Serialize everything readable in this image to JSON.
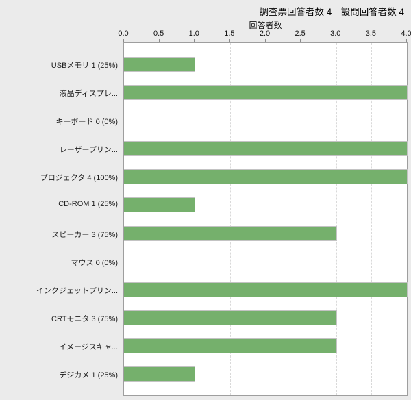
{
  "title": "調査票回答者数 4　設問回答者数 4",
  "colors": {
    "page_bg": "#ebebeb",
    "plot_bg": "#ffffff",
    "plot_border": "#9e9e9e",
    "gridline": "#d9d9d9",
    "bar_fill": "#75b06c",
    "bar_border": "#c3c3c3",
    "text": "#111111"
  },
  "chart_data": {
    "type": "bar",
    "orientation": "horizontal",
    "title": "調査票回答者数 4　設問回答者数 4",
    "xlabel": "回答者数",
    "ylabel": "",
    "xlim": [
      0.0,
      4.0
    ],
    "xticks": [
      "0.0",
      "0.5",
      "1.0",
      "1.5",
      "2.0",
      "2.5",
      "3.0",
      "3.5",
      "4.0"
    ],
    "grid": "vertical-dashed",
    "legend": "none",
    "categories": [
      "USBメモリ 1 (25%)",
      "液晶ディスプレ...",
      "キーボード 0 (0%)",
      "レーザープリン...",
      "プロジェクタ 4 (100%)",
      "CD-ROM 1 (25%)",
      "スピーカー 3 (75%)",
      "マウス 0 (0%)",
      "インクジェットプリン...",
      "CRTモニタ 3 (75%)",
      "イメージスキャ...",
      "デジカメ 1 (25%)"
    ],
    "values": [
      1,
      4,
      0,
      4,
      4,
      1,
      3,
      0,
      4,
      3,
      3,
      1
    ]
  }
}
